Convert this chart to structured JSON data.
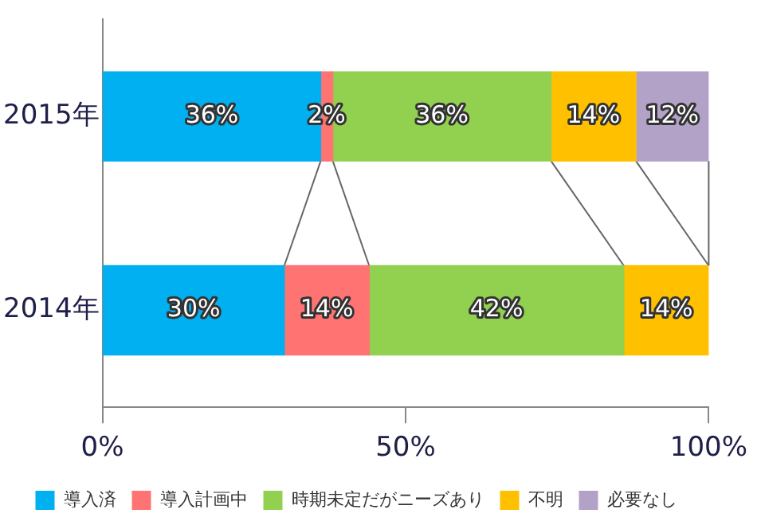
{
  "chart_data": {
    "type": "bar",
    "orientation": "horizontal",
    "stacked": true,
    "categories": [
      "2015年",
      "2014年"
    ],
    "series": [
      {
        "name": "導入済",
        "color": "#00b0f0",
        "values": [
          36,
          30
        ],
        "value_labels": [
          "36%",
          "30%"
        ]
      },
      {
        "name": "導入計画中",
        "color": "#ff7373",
        "values": [
          2,
          14
        ],
        "value_labels": [
          "2%",
          "14%"
        ]
      },
      {
        "name": "時期未定だがニーズあり",
        "color": "#92d050",
        "values": [
          36,
          42
        ],
        "value_labels": [
          "36%",
          "42%"
        ]
      },
      {
        "name": "不明",
        "color": "#ffc000",
        "values": [
          14,
          14
        ],
        "value_labels": [
          "14%",
          "14%"
        ]
      },
      {
        "name": "必要なし",
        "color": "#b3a2c7",
        "values": [
          12,
          null
        ],
        "value_labels": [
          "12%",
          null
        ]
      }
    ],
    "xlim": [
      0,
      100
    ],
    "xticks": [
      {
        "value": 0,
        "label": "0%"
      },
      {
        "value": 50,
        "label": "50%"
      },
      {
        "value": 100,
        "label": "100%"
      }
    ],
    "grid": false,
    "legend": "bottom"
  }
}
